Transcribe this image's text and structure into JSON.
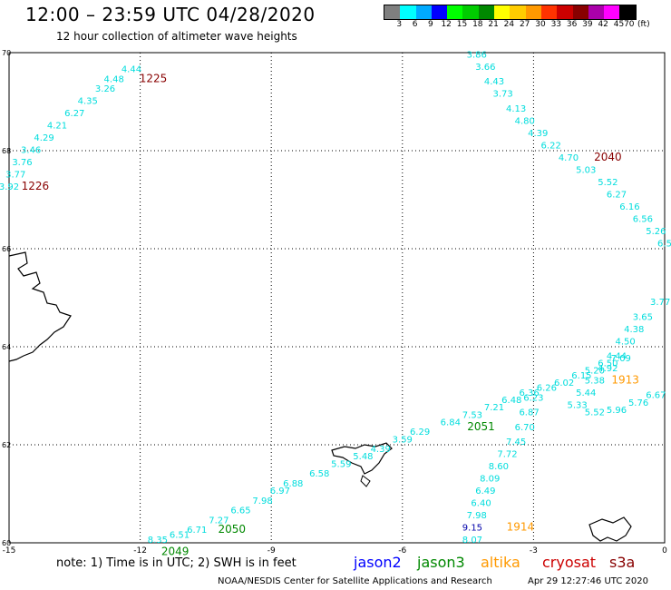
{
  "header": {
    "title": "12:00 – 23:59 UTC 04/28/2020",
    "subtitle": "12 hour collection of altimeter wave heights"
  },
  "legend": {
    "unit": "(ft)",
    "items": [
      {
        "label": "3",
        "color": "#7f7f7f"
      },
      {
        "label": "6",
        "color": "#00ffff"
      },
      {
        "label": "9",
        "color": "#00aaff"
      },
      {
        "label": "12",
        "color": "#0000ff"
      },
      {
        "label": "15",
        "color": "#00ff00"
      },
      {
        "label": "18",
        "color": "#00cc00"
      },
      {
        "label": "21",
        "color": "#008800"
      },
      {
        "label": "24",
        "color": "#ffff00"
      },
      {
        "label": "27",
        "color": "#ffcc00"
      },
      {
        "label": "30",
        "color": "#ff9900"
      },
      {
        "label": "33",
        "color": "#ff3300"
      },
      {
        "label": "36",
        "color": "#cc0000"
      },
      {
        "label": "39",
        "color": "#880000"
      },
      {
        "label": "42",
        "color": "#aa00aa"
      },
      {
        "label": "45",
        "color": "#ff00ff"
      },
      {
        "label": "70",
        "color": "#000000"
      }
    ]
  },
  "map": {
    "lon_range": [
      -15,
      0
    ],
    "lat_range": [
      60,
      70
    ],
    "x_ticks": [
      "-15",
      "-12",
      "-9",
      "-6",
      "-3",
      "0"
    ],
    "y_ticks": [
      "70",
      "68",
      "66",
      "64",
      "62",
      "60"
    ],
    "track_color": "#00dddd",
    "tracks": [
      {
        "name": "track-nw",
        "points": [
          {
            "lon": -12.2,
            "lat": 69.6,
            "v": "4.44"
          },
          {
            "lon": -12.6,
            "lat": 69.4,
            "v": "4.48"
          },
          {
            "lon": -12.8,
            "lat": 69.2,
            "v": "3.26"
          },
          {
            "lon": -13.2,
            "lat": 68.95,
            "v": "4.35"
          },
          {
            "lon": -13.5,
            "lat": 68.7,
            "v": "6.27"
          },
          {
            "lon": -13.9,
            "lat": 68.45,
            "v": "4.21"
          },
          {
            "lon": -14.2,
            "lat": 68.2,
            "v": "4.29"
          },
          {
            "lon": -14.5,
            "lat": 67.95,
            "v": "3.46"
          },
          {
            "lon": -14.7,
            "lat": 67.7,
            "v": "3.76"
          },
          {
            "lon": -14.85,
            "lat": 67.45,
            "v": "3.77"
          },
          {
            "lon": -15.0,
            "lat": 67.2,
            "v": "3.92"
          }
        ],
        "times": [
          {
            "lon": -11.7,
            "lat": 69.4,
            "v": "1225",
            "color": "#880000"
          },
          {
            "lon": -14.4,
            "lat": 67.2,
            "v": "1226",
            "color": "#880000"
          }
        ]
      },
      {
        "name": "track-ne",
        "points": [
          {
            "lon": -4.3,
            "lat": 69.9,
            "v": "3.86"
          },
          {
            "lon": -4.1,
            "lat": 69.65,
            "v": "3.66"
          },
          {
            "lon": -3.9,
            "lat": 69.35,
            "v": "4.43"
          },
          {
            "lon": -3.7,
            "lat": 69.1,
            "v": "3.73"
          },
          {
            "lon": -3.4,
            "lat": 68.8,
            "v": "4.13"
          },
          {
            "lon": -3.2,
            "lat": 68.55,
            "v": "4.80"
          },
          {
            "lon": -2.9,
            "lat": 68.3,
            "v": "4.39"
          },
          {
            "lon": -2.6,
            "lat": 68.05,
            "v": "6.22"
          },
          {
            "lon": -2.2,
            "lat": 67.8,
            "v": "4.70"
          },
          {
            "lon": -1.8,
            "lat": 67.55,
            "v": "5.03"
          },
          {
            "lon": -1.3,
            "lat": 67.3,
            "v": "5.52"
          },
          {
            "lon": -1.1,
            "lat": 67.05,
            "v": "6.27"
          },
          {
            "lon": -0.8,
            "lat": 66.8,
            "v": "6.16"
          },
          {
            "lon": -0.5,
            "lat": 66.55,
            "v": "6.56"
          },
          {
            "lon": -0.2,
            "lat": 66.3,
            "v": "5.26"
          },
          {
            "lon": 0.0,
            "lat": 66.05,
            "v": "6.5"
          }
        ],
        "times": [
          {
            "lon": -1.3,
            "lat": 67.8,
            "v": "2040",
            "color": "#880000"
          }
        ]
      },
      {
        "name": "track-east",
        "points": [
          {
            "lon": -0.1,
            "lat": 64.85,
            "v": "3.77"
          },
          {
            "lon": -0.5,
            "lat": 64.55,
            "v": "3.65"
          },
          {
            "lon": -0.7,
            "lat": 64.3,
            "v": "4.38"
          },
          {
            "lon": -0.9,
            "lat": 64.05,
            "v": "4.50"
          },
          {
            "lon": -1.1,
            "lat": 63.75,
            "v": "4.44"
          },
          {
            "lon": -1.3,
            "lat": 63.5,
            "v": "4.92"
          },
          {
            "lon": -1.6,
            "lat": 63.25,
            "v": "5.38"
          },
          {
            "lon": -1.8,
            "lat": 63.0,
            "v": "5.44"
          },
          {
            "lon": -2.0,
            "lat": 62.75,
            "v": "5.33"
          },
          {
            "lon": -1.6,
            "lat": 62.6,
            "v": "5.52"
          },
          {
            "lon": -1.1,
            "lat": 62.65,
            "v": "5.96"
          },
          {
            "lon": -0.6,
            "lat": 62.8,
            "v": "5.76"
          },
          {
            "lon": -0.2,
            "lat": 62.95,
            "v": "6.67"
          }
        ],
        "times": [
          {
            "lon": -0.9,
            "lat": 63.25,
            "v": "1913",
            "color": "#ff9900"
          }
        ]
      },
      {
        "name": "track-sw",
        "points": [
          {
            "lon": -11.6,
            "lat": 60.0,
            "v": "8.35"
          },
          {
            "lon": -11.1,
            "lat": 60.1,
            "v": "6.51"
          },
          {
            "lon": -10.7,
            "lat": 60.2,
            "v": "6.71"
          },
          {
            "lon": -10.2,
            "lat": 60.4,
            "v": "7.27"
          },
          {
            "lon": -9.7,
            "lat": 60.6,
            "v": "6.65"
          },
          {
            "lon": -9.2,
            "lat": 60.8,
            "v": "7.98"
          },
          {
            "lon": -8.8,
            "lat": 61.0,
            "v": "6.97"
          },
          {
            "lon": -8.5,
            "lat": 61.15,
            "v": "6.88"
          },
          {
            "lon": -7.9,
            "lat": 61.35,
            "v": "6.58"
          },
          {
            "lon": -7.4,
            "lat": 61.55,
            "v": "5.59"
          },
          {
            "lon": -6.9,
            "lat": 61.7,
            "v": "5.48"
          },
          {
            "lon": -6.5,
            "lat": 61.85,
            "v": "4.39"
          },
          {
            "lon": -6.0,
            "lat": 62.05,
            "v": "3.59"
          },
          {
            "lon": -5.6,
            "lat": 62.2,
            "v": "6.29"
          },
          {
            "lon": -4.9,
            "lat": 62.4,
            "v": "6.84"
          },
          {
            "lon": -4.4,
            "lat": 62.55,
            "v": "7.53"
          },
          {
            "lon": -3.9,
            "lat": 62.7,
            "v": "7.21"
          },
          {
            "lon": -3.5,
            "lat": 62.85,
            "v": "6.48"
          },
          {
            "lon": -3.1,
            "lat": 63.0,
            "v": "6.36"
          },
          {
            "lon": -2.7,
            "lat": 63.1,
            "v": "6.26"
          },
          {
            "lon": -2.3,
            "lat": 63.2,
            "v": "6.02"
          },
          {
            "lon": -1.9,
            "lat": 63.35,
            "v": "6.15"
          },
          {
            "lon": -1.6,
            "lat": 63.45,
            "v": "5.20"
          },
          {
            "lon": -1.3,
            "lat": 63.6,
            "v": "6.50"
          },
          {
            "lon": -1.0,
            "lat": 63.7,
            "v": "7.09"
          }
        ],
        "times": [
          {
            "lon": -9.9,
            "lat": 60.2,
            "v": "2050",
            "color": "#008800"
          },
          {
            "lon": -11.2,
            "lat": 59.75,
            "v": "2049",
            "color": "#008800"
          },
          {
            "lon": -4.2,
            "lat": 62.3,
            "v": "2051",
            "color": "#008800"
          }
        ]
      },
      {
        "name": "track-south",
        "points": [
          {
            "lon": -3.0,
            "lat": 62.9,
            "v": "6.23"
          },
          {
            "lon": -3.1,
            "lat": 62.6,
            "v": "6.87"
          },
          {
            "lon": -3.2,
            "lat": 62.3,
            "v": "6.70"
          },
          {
            "lon": -3.4,
            "lat": 62.0,
            "v": "7.45"
          },
          {
            "lon": -3.6,
            "lat": 61.75,
            "v": "7.72"
          },
          {
            "lon": -3.8,
            "lat": 61.5,
            "v": "8.60"
          },
          {
            "lon": -4.0,
            "lat": 61.25,
            "v": "8.09"
          },
          {
            "lon": -4.1,
            "lat": 61.0,
            "v": "6.49"
          },
          {
            "lon": -4.2,
            "lat": 60.75,
            "v": "6.40"
          },
          {
            "lon": -4.3,
            "lat": 60.5,
            "v": "7.98"
          },
          {
            "lon": -4.4,
            "lat": 60.0,
            "v": "8.07"
          }
        ],
        "times": [
          {
            "lon": -3.3,
            "lat": 60.25,
            "v": "1914",
            "color": "#ff9900"
          }
        ],
        "special": [
          {
            "lon": -4.4,
            "lat": 60.25,
            "v": "9.15",
            "color": "#0000aa"
          }
        ]
      }
    ]
  },
  "footer": {
    "note": "note:  1) Time is in UTC;  2) SWH is in feet",
    "satellites": [
      {
        "label": "jason2",
        "color": "#0000ff"
      },
      {
        "label": "jason3",
        "color": "#008800"
      },
      {
        "label": "altika",
        "color": "#ff9900"
      },
      {
        "label": "cryosat",
        "color": "#cc0000"
      },
      {
        "label": "s3a",
        "color": "#880000"
      }
    ],
    "credit": "NOAA/NESDIS Center for Satellite Applications and Research",
    "timestamp": "Apr 29 12:27:46 UTC 2020"
  }
}
